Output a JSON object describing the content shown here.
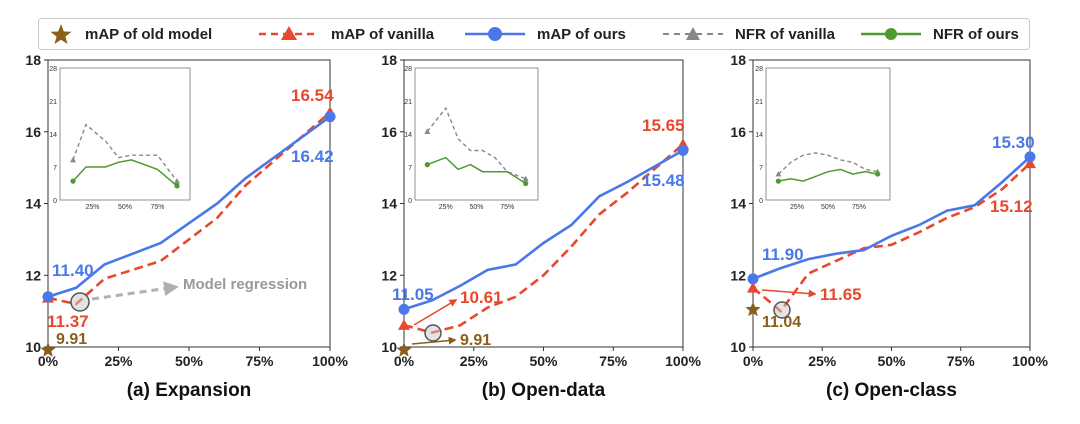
{
  "legend": {
    "items": [
      {
        "label": "mAP of old model",
        "marker": "star",
        "color": "#8B5E1A",
        "line": "none"
      },
      {
        "label": "mAP of vanilla",
        "marker": "triangle",
        "color": "#E8482E",
        "line": "dashed"
      },
      {
        "label": "mAP of ours",
        "marker": "circle",
        "color": "#4A78E8",
        "line": "solid"
      },
      {
        "label": "NFR of vanilla",
        "marker": "triangle",
        "color": "#888888",
        "line": "dashed"
      },
      {
        "label": "NFR of ours",
        "marker": "circle",
        "color": "#4E9A2E",
        "line": "solid"
      }
    ]
  },
  "colors": {
    "old": "#8B5E1A",
    "vanilla": "#E8482E",
    "ours": "#4A78E8",
    "nfr_vanilla": "#888888",
    "nfr_ours": "#4E9A2E",
    "regression": "#b0b0b0"
  },
  "chart_data": [
    {
      "type": "line",
      "title": "(a) Expansion",
      "x": [
        0,
        10,
        20,
        40,
        60,
        70,
        100
      ],
      "xticks": [
        0,
        25,
        50,
        75,
        100
      ],
      "xticklabels": [
        "0%",
        "25%",
        "50%",
        "75%",
        "100%"
      ],
      "ylim": [
        10,
        18
      ],
      "yticks": [
        10,
        12,
        14,
        16,
        18
      ],
      "series": [
        {
          "name": "mAP of ours",
          "values": [
            11.4,
            11.65,
            12.3,
            12.9,
            14.0,
            14.7,
            16.42
          ]
        },
        {
          "name": "mAP of vanilla",
          "values": [
            11.37,
            11.2,
            11.9,
            12.4,
            13.6,
            14.5,
            16.54
          ]
        }
      ],
      "old_model": 9.91,
      "labels": {
        "ours": "11.40",
        "vanilla": "11.37",
        "old": "9.91",
        "ours_end": "16.42",
        "vanilla_end": "16.54"
      },
      "annotation": "Model regression",
      "inset": {
        "ylim": [
          0,
          28
        ],
        "yticks": [
          0,
          7,
          14,
          21,
          28
        ],
        "xticklabels": [
          "25%",
          "50%",
          "75%"
        ],
        "x": [
          10,
          20,
          35,
          45,
          55,
          75,
          90
        ],
        "nfr_vanilla": [
          8.5,
          16,
          12.5,
          9,
          9.5,
          9.5,
          4
        ],
        "nfr_ours": [
          4,
          7,
          7,
          8,
          8.5,
          6.5,
          3
        ]
      }
    },
    {
      "type": "line",
      "title": "(b) Open-data",
      "x": [
        0,
        10,
        20,
        30,
        40,
        50,
        60,
        70,
        80,
        100
      ],
      "xticks": [
        0,
        25,
        50,
        75,
        100
      ],
      "xticklabels": [
        "0%",
        "25%",
        "50%",
        "75%",
        "100%"
      ],
      "ylim": [
        10,
        18
      ],
      "yticks": [
        10,
        12,
        14,
        16,
        18
      ],
      "series": [
        {
          "name": "mAP of ours",
          "values": [
            11.05,
            11.3,
            11.7,
            12.15,
            12.3,
            12.9,
            13.4,
            14.2,
            14.6,
            15.48
          ]
        },
        {
          "name": "mAP of vanilla",
          "values": [
            10.61,
            10.4,
            10.6,
            11.1,
            11.4,
            12.0,
            12.8,
            13.7,
            14.3,
            15.65
          ]
        }
      ],
      "old_model": 9.91,
      "labels": {
        "ours": "11.05",
        "vanilla": "10.61",
        "old": "9.91",
        "ours_end": "15.48",
        "vanilla_end": "15.65"
      },
      "inset": {
        "ylim": [
          0,
          28
        ],
        "yticks": [
          0,
          7,
          14,
          21,
          28
        ],
        "xticklabels": [
          "25%",
          "50%",
          "75%"
        ],
        "x": [
          10,
          25,
          35,
          45,
          55,
          65,
          75,
          90
        ],
        "nfr_vanilla": [
          14.5,
          19.5,
          13,
          10.5,
          10.5,
          9,
          6,
          4.5
        ],
        "nfr_ours": [
          7.5,
          9,
          6.5,
          7.5,
          6,
          6,
          6,
          3.5
        ]
      }
    },
    {
      "type": "line",
      "title": "(c) Open-class",
      "x": [
        0,
        10,
        20,
        30,
        40,
        50,
        60,
        70,
        80,
        90,
        100
      ],
      "xticks": [
        0,
        25,
        50,
        75,
        100
      ],
      "xticklabels": [
        "0%",
        "25%",
        "50%",
        "75%",
        "100%"
      ],
      "ylim": [
        10,
        18
      ],
      "yticks": [
        10,
        12,
        14,
        16,
        18
      ],
      "series": [
        {
          "name": "mAP of ours",
          "values": [
            11.9,
            12.2,
            12.45,
            12.6,
            12.7,
            13.1,
            13.4,
            13.8,
            13.95,
            14.6,
            15.3
          ]
        },
        {
          "name": "mAP of vanilla",
          "values": [
            11.65,
            11.0,
            12.05,
            12.4,
            12.75,
            12.85,
            13.2,
            13.6,
            13.9,
            14.4,
            15.12
          ]
        }
      ],
      "old_model": 11.04,
      "labels": {
        "ours": "11.90",
        "vanilla": "11.65",
        "old": "11.04",
        "ours_end": "15.30",
        "vanilla_end": "15.12"
      },
      "inset": {
        "ylim": [
          0,
          28
        ],
        "yticks": [
          0,
          7,
          14,
          21,
          28
        ],
        "xticklabels": [
          "25%",
          "50%",
          "75%"
        ],
        "x": [
          10,
          20,
          30,
          40,
          50,
          60,
          70,
          80,
          90
        ],
        "nfr_vanilla": [
          5.5,
          8,
          9.5,
          10,
          9.5,
          8.5,
          8,
          6.5,
          6
        ],
        "nfr_ours": [
          4,
          4.5,
          4,
          5,
          6,
          6.5,
          5.5,
          6,
          5.5
        ]
      }
    }
  ]
}
